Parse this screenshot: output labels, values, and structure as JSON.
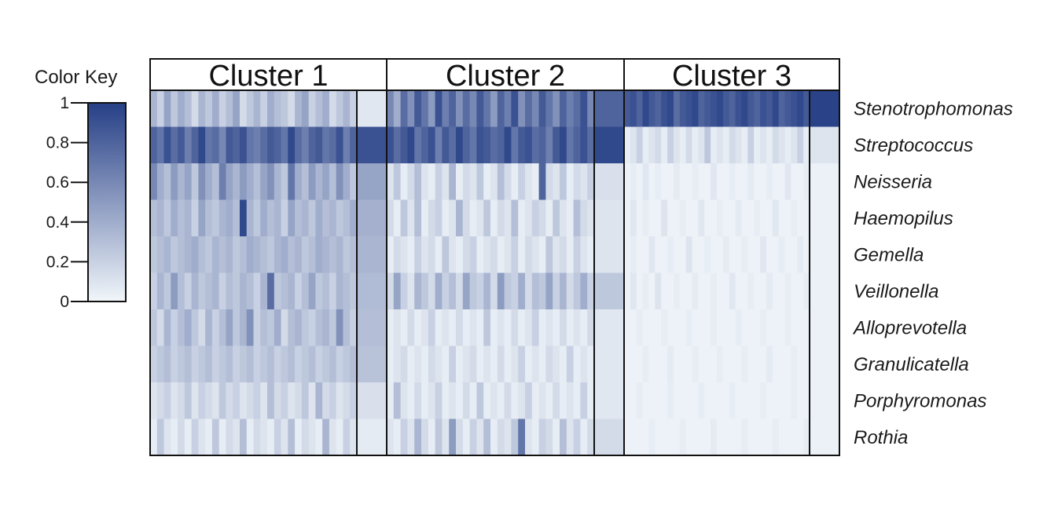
{
  "chart_data": {
    "type": "heatmap",
    "title": "",
    "color_key": {
      "title": "Color Key",
      "ticks": [
        "1",
        "0.8",
        "0.6",
        "0.4",
        "0.2",
        "0"
      ],
      "tick_values": [
        1,
        0.8,
        0.6,
        0.4,
        0.2,
        0
      ],
      "range": [
        0,
        1
      ],
      "low_color": "#f1f6fa",
      "high_color": "#263f86"
    },
    "rows": [
      "Stenotrophomonas",
      "Streptococcus",
      "Neisseria",
      "Haemopilus",
      "Gemella",
      "Veillonella",
      "Alloprevotella",
      "Granulicatella",
      "Porphyromonas",
      "Rothia"
    ],
    "clusters": [
      {
        "name": "Cluster 1",
        "sample_count": 30,
        "mean": [
          0.08,
          0.9,
          0.45,
          0.38,
          0.35,
          0.32,
          0.3,
          0.28,
          0.12,
          0.06
        ],
        "samples": [
          [
            0.35,
            0.2,
            0.45,
            0.25,
            0.4,
            0.3,
            0.15,
            0.35,
            0.25,
            0.4,
            0.2,
            0.3,
            0.45,
            0.15,
            0.25,
            0.35,
            0.2,
            0.4,
            0.3,
            0.25,
            0.15,
            0.35,
            0.45,
            0.2,
            0.3,
            0.4,
            0.15,
            0.25,
            0.35,
            0.2
          ],
          [
            0.8,
            0.7,
            0.9,
            0.75,
            0.85,
            0.65,
            0.8,
            0.95,
            0.7,
            0.75,
            0.6,
            0.85,
            0.8,
            0.9,
            0.7,
            0.65,
            0.75,
            0.85,
            0.8,
            0.7,
            0.95,
            0.75,
            0.65,
            0.8,
            0.85,
            0.7,
            0.75,
            0.9,
            0.65,
            0.8
          ],
          [
            0.6,
            0.4,
            0.3,
            0.5,
            0.35,
            0.45,
            0.25,
            0.55,
            0.4,
            0.3,
            0.65,
            0.45,
            0.35,
            0.5,
            0.4,
            0.3,
            0.45,
            0.55,
            0.35,
            0.25,
            0.7,
            0.4,
            0.3,
            0.5,
            0.35,
            0.45,
            0.3,
            0.55,
            0.4,
            0.25
          ],
          [
            0.3,
            0.35,
            0.25,
            0.4,
            0.3,
            0.35,
            0.2,
            0.45,
            0.3,
            0.25,
            0.35,
            0.4,
            0.3,
            0.95,
            0.35,
            0.25,
            0.4,
            0.3,
            0.35,
            0.2,
            0.45,
            0.3,
            0.35,
            0.25,
            0.4,
            0.3,
            0.35,
            0.25,
            0.3,
            0.4
          ],
          [
            0.25,
            0.3,
            0.35,
            0.25,
            0.3,
            0.35,
            0.4,
            0.3,
            0.25,
            0.35,
            0.3,
            0.35,
            0.25,
            0.3,
            0.4,
            0.35,
            0.3,
            0.25,
            0.35,
            0.4,
            0.3,
            0.35,
            0.25,
            0.3,
            0.4,
            0.35,
            0.3,
            0.35,
            0.25,
            0.3
          ],
          [
            0.2,
            0.35,
            0.25,
            0.5,
            0.3,
            0.2,
            0.35,
            0.25,
            0.3,
            0.35,
            0.2,
            0.3,
            0.25,
            0.35,
            0.3,
            0.2,
            0.35,
            0.75,
            0.25,
            0.3,
            0.35,
            0.2,
            0.3,
            0.45,
            0.25,
            0.3,
            0.2,
            0.35,
            0.3,
            0.25
          ],
          [
            0.25,
            0.15,
            0.35,
            0.2,
            0.3,
            0.4,
            0.25,
            0.15,
            0.35,
            0.2,
            0.3,
            0.45,
            0.25,
            0.35,
            0.55,
            0.2,
            0.3,
            0.25,
            0.4,
            0.15,
            0.3,
            0.35,
            0.25,
            0.2,
            0.3,
            0.35,
            0.25,
            0.55,
            0.3,
            0.2
          ],
          [
            0.2,
            0.25,
            0.3,
            0.2,
            0.25,
            0.3,
            0.2,
            0.25,
            0.3,
            0.2,
            0.25,
            0.3,
            0.2,
            0.25,
            0.3,
            0.2,
            0.25,
            0.3,
            0.2,
            0.25,
            0.3,
            0.2,
            0.25,
            0.3,
            0.2,
            0.25,
            0.3,
            0.2,
            0.25,
            0.3
          ],
          [
            0.1,
            0.15,
            0.2,
            0.1,
            0.15,
            0.25,
            0.1,
            0.2,
            0.15,
            0.1,
            0.25,
            0.15,
            0.2,
            0.1,
            0.15,
            0.2,
            0.1,
            0.3,
            0.15,
            0.2,
            0.1,
            0.15,
            0.25,
            0.1,
            0.35,
            0.15,
            0.2,
            0.1,
            0.15,
            0.2
          ],
          [
            0.05,
            0.25,
            0.1,
            0.05,
            0.15,
            0.05,
            0.2,
            0.1,
            0.05,
            0.25,
            0.05,
            0.15,
            0.1,
            0.3,
            0.05,
            0.15,
            0.1,
            0.05,
            0.2,
            0.1,
            0.3,
            0.05,
            0.15,
            0.1,
            0.05,
            0.35,
            0.1,
            0.05,
            0.2,
            0.1
          ]
        ]
      },
      {
        "name": "Cluster 2",
        "sample_count": 30,
        "mean": [
          0.8,
          0.95,
          0.12,
          0.1,
          0.1,
          0.25,
          0.08,
          0.08,
          0.08,
          0.15
        ],
        "samples": [
          [
            0.6,
            0.4,
            0.75,
            0.55,
            0.85,
            0.7,
            0.5,
            0.9,
            0.65,
            0.8,
            0.55,
            0.75,
            0.6,
            0.85,
            0.7,
            0.5,
            0.8,
            0.65,
            0.9,
            0.55,
            0.75,
            0.6,
            0.85,
            0.7,
            0.55,
            0.8,
            0.65,
            0.75,
            0.9,
            0.6
          ],
          [
            0.9,
            0.75,
            0.85,
            0.95,
            0.7,
            0.8,
            0.9,
            0.65,
            0.85,
            0.75,
            0.95,
            0.8,
            0.7,
            0.9,
            0.85,
            0.75,
            0.8,
            0.95,
            0.7,
            0.85,
            0.9,
            0.75,
            0.8,
            0.65,
            0.85,
            0.95,
            0.7,
            0.8,
            0.9,
            0.75
          ],
          [
            0.1,
            0.25,
            0.05,
            0.15,
            0.3,
            0.1,
            0.05,
            0.2,
            0.1,
            0.35,
            0.05,
            0.15,
            0.1,
            0.25,
            0.05,
            0.1,
            0.3,
            0.15,
            0.05,
            0.2,
            0.1,
            0.05,
            0.8,
            0.15,
            0.1,
            0.25,
            0.05,
            0.15,
            0.1,
            0.2
          ],
          [
            0.15,
            0.05,
            0.25,
            0.1,
            0.3,
            0.05,
            0.15,
            0.2,
            0.05,
            0.1,
            0.35,
            0.15,
            0.05,
            0.1,
            0.25,
            0.05,
            0.15,
            0.1,
            0.3,
            0.05,
            0.1,
            0.2,
            0.15,
            0.05,
            0.25,
            0.1,
            0.05,
            0.3,
            0.15,
            0.1
          ],
          [
            0.05,
            0.15,
            0.1,
            0.05,
            0.2,
            0.1,
            0.15,
            0.05,
            0.25,
            0.1,
            0.05,
            0.15,
            0.2,
            0.05,
            0.1,
            0.15,
            0.05,
            0.1,
            0.2,
            0.05,
            0.15,
            0.1,
            0.05,
            0.25,
            0.1,
            0.15,
            0.05,
            0.2,
            0.1,
            0.05
          ],
          [
            0.15,
            0.45,
            0.2,
            0.1,
            0.35,
            0.25,
            0.15,
            0.4,
            0.2,
            0.3,
            0.15,
            0.45,
            0.25,
            0.2,
            0.35,
            0.15,
            0.5,
            0.25,
            0.2,
            0.4,
            0.15,
            0.3,
            0.25,
            0.45,
            0.2,
            0.35,
            0.15,
            0.25,
            0.4,
            0.2
          ],
          [
            0.05,
            0.1,
            0.05,
            0.15,
            0.05,
            0.1,
            0.2,
            0.05,
            0.1,
            0.05,
            0.15,
            0.05,
            0.1,
            0.05,
            0.25,
            0.05,
            0.1,
            0.05,
            0.15,
            0.05,
            0.1,
            0.2,
            0.05,
            0.1,
            0.05,
            0.15,
            0.05,
            0.1,
            0.05,
            0.15
          ],
          [
            0.05,
            0.1,
            0.15,
            0.05,
            0.1,
            0.05,
            0.15,
            0.1,
            0.05,
            0.2,
            0.05,
            0.1,
            0.15,
            0.05,
            0.1,
            0.05,
            0.15,
            0.05,
            0.1,
            0.2,
            0.05,
            0.1,
            0.05,
            0.15,
            0.1,
            0.05,
            0.2,
            0.05,
            0.1,
            0.05
          ],
          [
            0.05,
            0.3,
            0.1,
            0.05,
            0.15,
            0.05,
            0.1,
            0.2,
            0.05,
            0.1,
            0.05,
            0.15,
            0.05,
            0.25,
            0.05,
            0.1,
            0.05,
            0.15,
            0.05,
            0.1,
            0.2,
            0.05,
            0.1,
            0.05,
            0.15,
            0.05,
            0.1,
            0.05,
            0.2,
            0.05
          ],
          [
            0.1,
            0.05,
            0.2,
            0.1,
            0.35,
            0.15,
            0.05,
            0.25,
            0.1,
            0.5,
            0.15,
            0.05,
            0.2,
            0.1,
            0.3,
            0.05,
            0.15,
            0.1,
            0.25,
            0.7,
            0.1,
            0.05,
            0.2,
            0.15,
            0.05,
            0.3,
            0.1,
            0.2,
            0.05,
            0.15
          ]
        ]
      },
      {
        "name": "Cluster 3",
        "sample_count": 30,
        "mean": [
          0.98,
          0.1,
          0.03,
          0.03,
          0.03,
          0.03,
          0.03,
          0.03,
          0.03,
          0.03
        ],
        "samples": [
          [
            0.85,
            0.9,
            0.8,
            0.95,
            0.85,
            0.8,
            0.9,
            0.95,
            0.75,
            0.85,
            0.9,
            0.95,
            0.8,
            0.85,
            0.9,
            0.95,
            0.85,
            0.8,
            0.9,
            0.95,
            0.85,
            0.8,
            0.9,
            0.85,
            0.95,
            0.8,
            0.85,
            0.9,
            0.95,
            0.85
          ],
          [
            0.05,
            0.1,
            0.2,
            0.05,
            0.1,
            0.15,
            0.05,
            0.2,
            0.1,
            0.05,
            0.15,
            0.05,
            0.1,
            0.25,
            0.05,
            0.1,
            0.05,
            0.15,
            0.1,
            0.05,
            0.2,
            0.05,
            0.1,
            0.05,
            0.15,
            0.1,
            0.05,
            0.1,
            0.2,
            0.05
          ],
          [
            0.02,
            0.05,
            0.02,
            0.08,
            0.02,
            0.05,
            0.02,
            0.02,
            0.06,
            0.02,
            0.02,
            0.05,
            0.02,
            0.02,
            0.08,
            0.02,
            0.02,
            0.05,
            0.02,
            0.02,
            0.06,
            0.02,
            0.02,
            0.05,
            0.02,
            0.02,
            0.08,
            0.02,
            0.02,
            0.05
          ],
          [
            0.02,
            0.08,
            0.02,
            0.05,
            0.02,
            0.02,
            0.1,
            0.02,
            0.02,
            0.05,
            0.02,
            0.02,
            0.08,
            0.02,
            0.02,
            0.05,
            0.02,
            0.02,
            0.06,
            0.02,
            0.02,
            0.05,
            0.02,
            0.02,
            0.08,
            0.02,
            0.02,
            0.05,
            0.02,
            0.02
          ],
          [
            0.02,
            0.05,
            0.02,
            0.02,
            0.08,
            0.02,
            0.02,
            0.05,
            0.02,
            0.02,
            0.1,
            0.02,
            0.02,
            0.05,
            0.02,
            0.02,
            0.06,
            0.02,
            0.02,
            0.05,
            0.02,
            0.02,
            0.08,
            0.02,
            0.02,
            0.05,
            0.02,
            0.02,
            0.06,
            0.02
          ],
          [
            0.02,
            0.08,
            0.02,
            0.05,
            0.02,
            0.1,
            0.02,
            0.02,
            0.05,
            0.02,
            0.02,
            0.06,
            0.02,
            0.02,
            0.05,
            0.02,
            0.02,
            0.08,
            0.02,
            0.02,
            0.05,
            0.02,
            0.02,
            0.06,
            0.02,
            0.02,
            0.05,
            0.02,
            0.02,
            0.05
          ],
          [
            0.02,
            0.02,
            0.05,
            0.02,
            0.02,
            0.02,
            0.05,
            0.02,
            0.02,
            0.02,
            0.05,
            0.02,
            0.02,
            0.02,
            0.05,
            0.02,
            0.02,
            0.02,
            0.05,
            0.02,
            0.02,
            0.02,
            0.05,
            0.02,
            0.02,
            0.02,
            0.05,
            0.02,
            0.02,
            0.02
          ],
          [
            0.02,
            0.02,
            0.02,
            0.05,
            0.02,
            0.02,
            0.02,
            0.06,
            0.02,
            0.02,
            0.02,
            0.05,
            0.02,
            0.02,
            0.02,
            0.05,
            0.02,
            0.02,
            0.02,
            0.05,
            0.02,
            0.02,
            0.02,
            0.06,
            0.02,
            0.02,
            0.02,
            0.05,
            0.02,
            0.02
          ],
          [
            0.02,
            0.02,
            0.05,
            0.02,
            0.02,
            0.02,
            0.02,
            0.05,
            0.02,
            0.02,
            0.02,
            0.02,
            0.05,
            0.02,
            0.02,
            0.02,
            0.02,
            0.05,
            0.02,
            0.02,
            0.02,
            0.02,
            0.05,
            0.02,
            0.02,
            0.02,
            0.02,
            0.05,
            0.02,
            0.02
          ],
          [
            0.02,
            0.02,
            0.02,
            0.02,
            0.05,
            0.02,
            0.02,
            0.02,
            0.02,
            0.05,
            0.02,
            0.02,
            0.02,
            0.02,
            0.06,
            0.02,
            0.02,
            0.02,
            0.02,
            0.05,
            0.02,
            0.02,
            0.02,
            0.02,
            0.05,
            0.02,
            0.02,
            0.02,
            0.02,
            0.05
          ]
        ]
      }
    ]
  }
}
